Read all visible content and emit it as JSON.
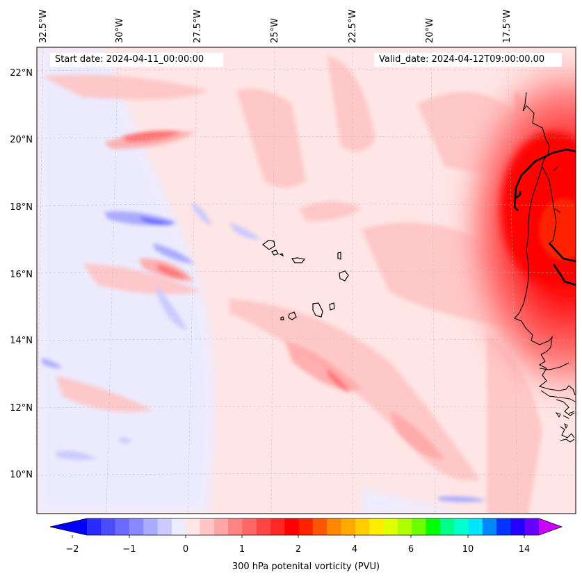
{
  "header": {
    "start_date": "Start date: 2024-04-11_00:00:00",
    "valid_date": "Valid_date: 2024-04-12T09:00:00.00"
  },
  "map": {
    "longitude_labels": [
      "32.5°W",
      "30°W",
      "27.5°W",
      "25°W",
      "22.5°W",
      "20°W",
      "17.5°W"
    ],
    "latitude_labels": [
      "22°N",
      "20°N",
      "18°N",
      "16°N",
      "14°N",
      "12°N",
      "10°N"
    ],
    "gridlines": "dashed",
    "coastline_color": "#000000",
    "border_color": "#000000"
  },
  "colorbar": {
    "label": "300 hPa potenital vorticity (PVU)",
    "tick_labels": [
      "−2",
      "−1",
      "0",
      "1",
      "2",
      "4",
      "6",
      "10",
      "14"
    ],
    "extend": "both",
    "under_color": "#0000ff",
    "over_color": "#cc00ff",
    "colors": [
      "#2b2bff",
      "#4c4cff",
      "#6a6aff",
      "#8989ff",
      "#aaaaff",
      "#cbcbff",
      "#ececff",
      "#ffe5e5",
      "#ffc5c5",
      "#ffa6a6",
      "#ff8585",
      "#ff6666",
      "#ff4444",
      "#ff2626",
      "#ff0000",
      "#ff2200",
      "#ff5500",
      "#ff8800",
      "#ffaa00",
      "#ffcc00",
      "#ffee00",
      "#e2ff00",
      "#b0ff00",
      "#6cff00",
      "#00ff00",
      "#00ff88",
      "#00ffcc",
      "#00e6ff",
      "#0088ff",
      "#0033ff",
      "#2200ff",
      "#6600ff"
    ]
  }
}
